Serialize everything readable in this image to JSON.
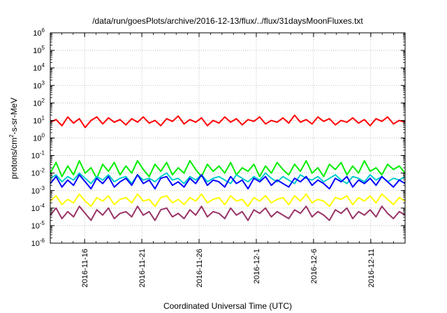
{
  "chart_data": {
    "type": "line",
    "title": "/data/run/goesPlots/archive/2016-12-13/flux/../flux/31daysMoonFluxes.txt",
    "xlabel": "Coordinated Universal Time (UTC)",
    "ylabel": "protons/cm²-s-sr-MeV",
    "y_scale": "log",
    "ylim": [
      1e-06,
      1000000.0
    ],
    "xlim": [
      "2016-11-13T00:00",
      "2016-12-14T00:00"
    ],
    "grid": true,
    "legend": "none",
    "x_ticks": [
      "2016-11-16",
      "2016-11-21",
      "2016-11-26",
      "2016-12-1",
      "2016-12-6",
      "2016-12-11"
    ],
    "y_ticks": [
      {
        "base": "10",
        "exp": "6"
      },
      {
        "base": "10",
        "exp": "5"
      },
      {
        "base": "10",
        "exp": "4"
      },
      {
        "base": "10",
        "exp": "3"
      },
      {
        "base": "10",
        "exp": "2"
      },
      {
        "base": "10",
        "exp": "1"
      },
      {
        "base": "10",
        "exp": "0"
      },
      {
        "base": "10",
        "exp": "-1"
      },
      {
        "base": "10",
        "exp": "-2"
      },
      {
        "base": "10",
        "exp": "-3"
      },
      {
        "base": "10",
        "exp": "-4"
      },
      {
        "base": "10",
        "exp": "-5"
      },
      {
        "base": "10",
        "exp": "-6"
      }
    ],
    "series": [
      {
        "color": "#ff0000",
        "values_log10": [
          0.9,
          1.05,
          0.7,
          1.2,
          0.85,
          1.1,
          0.6,
          1.0,
          1.2,
          0.8,
          1.15,
          0.9,
          1.05,
          0.75,
          1.1,
          0.9,
          1.2,
          0.85,
          1.0,
          0.7,
          1.1,
          0.95,
          1.25,
          0.8,
          1.05,
          0.9,
          1.15,
          0.7,
          1.0,
          0.85,
          1.2,
          0.9,
          1.1,
          0.75,
          1.05,
          0.95,
          1.2,
          0.8,
          1.0,
          0.9,
          1.15,
          0.85,
          1.3,
          0.9,
          1.05,
          0.8,
          1.2,
          0.95,
          1.1,
          0.75,
          1.0,
          0.9,
          1.15,
          0.85,
          1.05,
          0.7,
          1.1,
          0.95,
          1.2,
          0.8,
          1.0,
          0.9
        ]
      },
      {
        "color": "#00ee00",
        "values_log10": [
          -2.0,
          -1.4,
          -2.2,
          -1.6,
          -2.1,
          -1.3,
          -2.0,
          -1.7,
          -2.3,
          -1.5,
          -1.9,
          -1.4,
          -2.1,
          -1.6,
          -2.0,
          -1.3,
          -1.8,
          -2.2,
          -1.5,
          -1.9,
          -1.4,
          -2.1,
          -1.7,
          -2.0,
          -1.3,
          -1.8,
          -2.2,
          -1.5,
          -1.9,
          -1.6,
          -2.0,
          -1.4,
          -2.1,
          -1.7,
          -1.9,
          -1.5,
          -2.2,
          -1.6,
          -2.0,
          -1.4,
          -1.8,
          -2.1,
          -1.5,
          -1.9,
          -1.3,
          -2.0,
          -1.7,
          -2.2,
          -1.5,
          -1.8,
          -1.4,
          -2.1,
          -1.6,
          -2.0,
          -1.3,
          -1.9,
          -1.7,
          -2.1,
          -1.5,
          -1.8,
          -1.6,
          -2.0
        ]
      },
      {
        "color": "#00cccc",
        "values_log10": [
          -2.3,
          -2.1,
          -2.5,
          -2.2,
          -2.4,
          -2.0,
          -2.3,
          -2.6,
          -2.2,
          -2.4,
          -2.1,
          -2.5,
          -2.3,
          -2.2,
          -2.6,
          -2.1,
          -2.4,
          -2.3,
          -2.5,
          -2.2,
          -2.0,
          -2.4,
          -2.3,
          -2.6,
          -2.2,
          -2.4,
          -2.1,
          -2.5,
          -2.3,
          -2.2,
          -2.4,
          -2.6,
          -2.1,
          -2.3,
          -2.5,
          -2.2,
          -2.4,
          -2.0,
          -2.3,
          -2.5,
          -2.2,
          -2.4,
          -2.6,
          -2.1,
          -2.3,
          -2.4,
          -2.2,
          -2.5,
          -2.3,
          -2.1,
          -2.4,
          -2.6,
          -2.2,
          -2.3,
          -2.5,
          -2.1,
          -2.4,
          -2.2,
          -2.5,
          -2.3,
          -2.4,
          -2.2
        ]
      },
      {
        "color": "#0000ff",
        "values_log10": [
          -2.6,
          -2.2,
          -2.8,
          -2.4,
          -2.7,
          -2.1,
          -2.5,
          -2.9,
          -2.3,
          -2.6,
          -2.2,
          -2.8,
          -2.5,
          -2.3,
          -2.7,
          -2.1,
          -2.6,
          -2.4,
          -2.9,
          -2.3,
          -2.2,
          -2.7,
          -2.5,
          -2.8,
          -2.3,
          -2.6,
          -2.1,
          -2.7,
          -2.4,
          -2.5,
          -2.8,
          -2.2,
          -2.6,
          -2.4,
          -2.9,
          -2.3,
          -2.5,
          -2.2,
          -2.7,
          -2.4,
          -2.6,
          -2.8,
          -2.3,
          -2.5,
          -2.2,
          -2.7,
          -2.4,
          -2.6,
          -2.9,
          -2.3,
          -2.5,
          -2.2,
          -2.8,
          -2.4,
          -2.6,
          -2.3,
          -2.7,
          -2.2,
          -2.5,
          -2.8,
          -2.4,
          -2.6
        ]
      },
      {
        "color": "#ffff00",
        "values_log10": [
          -3.6,
          -3.3,
          -3.8,
          -3.5,
          -3.7,
          -3.2,
          -3.6,
          -3.9,
          -3.4,
          -3.6,
          -3.3,
          -3.8,
          -3.5,
          -3.4,
          -3.7,
          -3.2,
          -3.6,
          -3.5,
          -3.9,
          -3.4,
          -3.3,
          -3.7,
          -3.5,
          -3.8,
          -3.4,
          -3.6,
          -3.2,
          -3.7,
          -3.5,
          -3.4,
          -3.8,
          -3.3,
          -3.6,
          -3.5,
          -3.9,
          -3.4,
          -3.6,
          -3.3,
          -3.7,
          -3.5,
          -3.4,
          -3.8,
          -3.3,
          -3.6,
          -3.2,
          -3.7,
          -3.5,
          -3.6,
          -3.9,
          -3.4,
          -3.5,
          -3.3,
          -3.8,
          -3.4,
          -3.6,
          -3.3,
          -3.7,
          -3.2,
          -3.5,
          -3.8,
          -3.4,
          -3.6
        ]
      },
      {
        "color": "#993366",
        "values_log10": [
          -4.4,
          -4.0,
          -4.6,
          -4.2,
          -4.5,
          -3.9,
          -4.3,
          -4.7,
          -4.1,
          -4.4,
          -4.0,
          -4.6,
          -4.3,
          -4.2,
          -4.5,
          -3.9,
          -4.4,
          -4.2,
          -4.7,
          -4.1,
          -4.0,
          -4.5,
          -4.3,
          -4.6,
          -4.1,
          -4.4,
          -3.9,
          -4.5,
          -4.2,
          -4.3,
          -4.6,
          -4.0,
          -4.4,
          -4.2,
          -4.7,
          -4.1,
          -4.3,
          -4.0,
          -4.5,
          -4.2,
          -4.4,
          -4.6,
          -4.1,
          -4.3,
          -3.9,
          -4.5,
          -4.2,
          -4.4,
          -4.7,
          -4.1,
          -4.3,
          -4.0,
          -4.6,
          -4.2,
          -4.4,
          -4.1,
          -4.5,
          -3.9,
          -4.3,
          -4.6,
          -4.2,
          -4.4
        ]
      }
    ]
  }
}
